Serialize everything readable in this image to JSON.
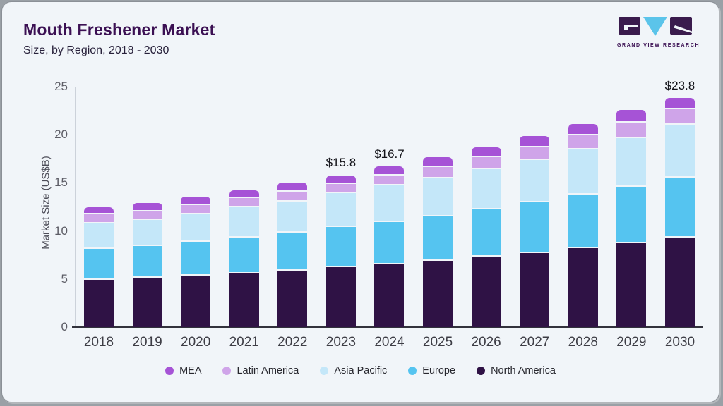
{
  "header": {
    "title": "Mouth Freshener Market",
    "subtitle": "Size, by Region, 2018 - 2030",
    "logo_text": "GRAND VIEW RESEARCH"
  },
  "colors": {
    "card_background": "#f1f5f9",
    "title_text": "#3b1053",
    "axis_line": "#32323c",
    "mea": "#a653d6",
    "latin_america": "#cfa4e9",
    "asia_pacific": "#c4e7f9",
    "europe": "#55c4f0",
    "north_america": "#2f1245"
  },
  "chart_data": {
    "type": "bar",
    "stacked": true,
    "title": "Mouth Freshener Market Size, by Region, 2018 - 2030",
    "xlabel": "",
    "ylabel": "Market Size (US$B)",
    "ylim": [
      0,
      25
    ],
    "yticks": [
      0,
      5,
      10,
      15,
      20,
      25
    ],
    "grid": false,
    "legend_position": "bottom",
    "categories": [
      "2018",
      "2019",
      "2020",
      "2021",
      "2022",
      "2023",
      "2024",
      "2025",
      "2026",
      "2027",
      "2028",
      "2029",
      "2030"
    ],
    "series": [
      {
        "name": "North America",
        "color": "#2f1245",
        "values": [
          4.9,
          5.1,
          5.35,
          5.6,
          5.85,
          6.2,
          6.5,
          6.9,
          7.3,
          7.7,
          8.2,
          8.7,
          9.3
        ]
      },
      {
        "name": "Europe",
        "color": "#55c4f0",
        "values": [
          3.25,
          3.3,
          3.5,
          3.7,
          3.95,
          4.2,
          4.45,
          4.6,
          4.95,
          5.25,
          5.6,
          5.9,
          6.25
        ]
      },
      {
        "name": "Asia Pacific",
        "color": "#c4e7f9",
        "values": [
          2.65,
          2.75,
          2.9,
          3.15,
          3.25,
          3.5,
          3.8,
          4.0,
          4.2,
          4.4,
          4.7,
          5.05,
          5.5
        ]
      },
      {
        "name": "Latin America",
        "color": "#cfa4e9",
        "values": [
          0.9,
          0.9,
          0.9,
          0.95,
          1.0,
          0.95,
          1.0,
          1.15,
          1.2,
          1.35,
          1.45,
          1.6,
          1.6
        ]
      },
      {
        "name": "MEA",
        "color": "#a653d6",
        "values": [
          0.8,
          0.85,
          0.9,
          0.85,
          0.95,
          0.95,
          0.95,
          1.0,
          1.05,
          1.15,
          1.15,
          1.3,
          1.15
        ]
      }
    ],
    "legend": [
      "MEA",
      "Latin America",
      "Asia Pacific",
      "Europe",
      "North America"
    ],
    "annotations": [
      {
        "category": "2023",
        "text": "$15.8"
      },
      {
        "category": "2024",
        "text": "$16.7"
      },
      {
        "category": "2030",
        "text": "$23.8"
      }
    ]
  }
}
